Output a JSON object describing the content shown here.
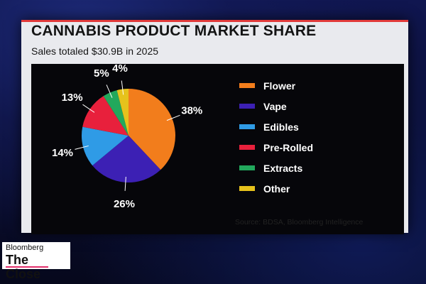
{
  "chart_data": {
    "type": "pie",
    "title": "CANNABIS PRODUCT MARKET SHARE",
    "subtitle": "Sales totaled $30.9B in 2025",
    "categories": [
      "Flower",
      "Vape",
      "Edibles",
      "Pre-Rolled",
      "Extracts",
      "Other"
    ],
    "values": [
      38,
      26,
      14,
      13,
      5,
      4
    ],
    "labels": [
      "38%",
      "26%",
      "14%",
      "13%",
      "5%",
      "4%"
    ],
    "colors": [
      "#f27d1c",
      "#3c20b4",
      "#2f9be6",
      "#e8203c",
      "#22a85c",
      "#e6c21c"
    ],
    "legend_position": "right",
    "source": "Source: BDSA, Bloomberg Intelligence"
  },
  "broadcast": {
    "brand": "Bloomberg",
    "show": "The Close"
  }
}
